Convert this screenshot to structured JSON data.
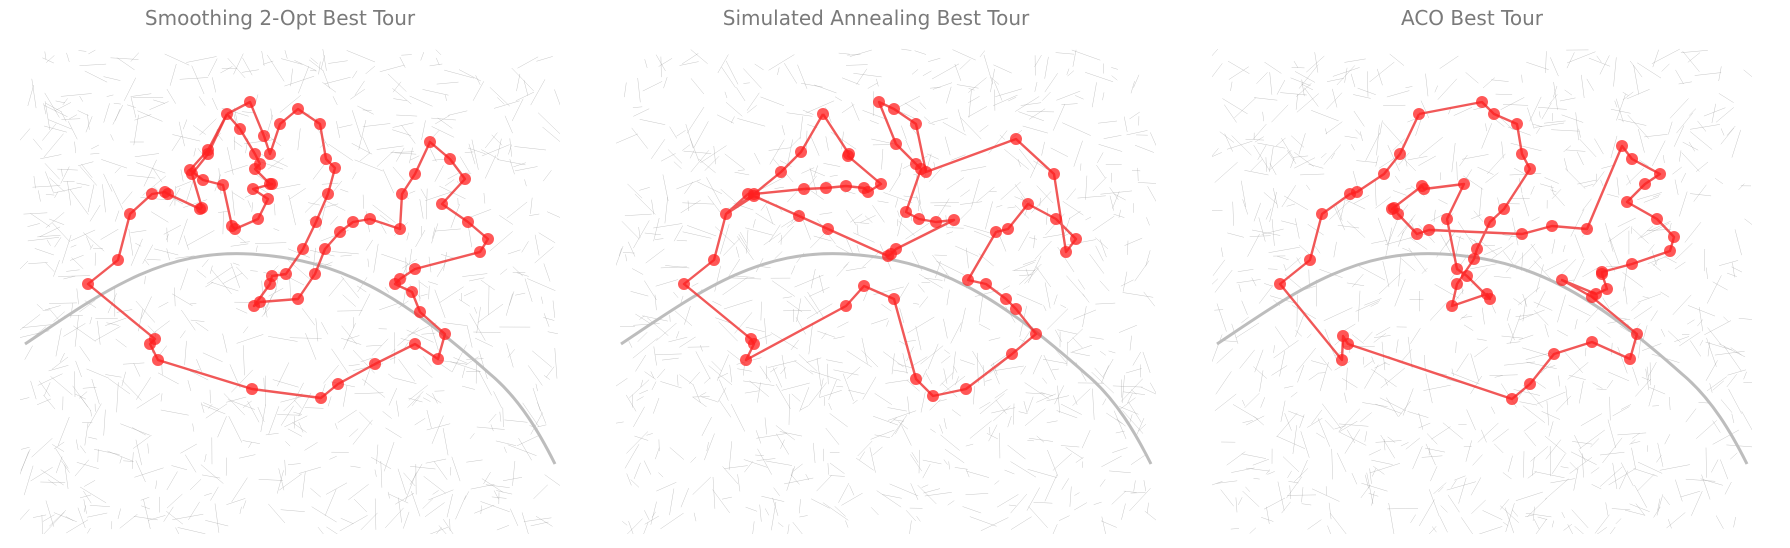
{
  "colors": {
    "route": "#ee3b3b",
    "stop": "#ff1f1f",
    "streets": "#9a9a9a",
    "title": "#7a7a7a"
  },
  "panels": [
    {
      "title": "Smoothing 2-Opt Best Tour"
    },
    {
      "title": "Simulated Annealing Best Tour"
    },
    {
      "title": "ACO Best Tour"
    }
  ]
}
